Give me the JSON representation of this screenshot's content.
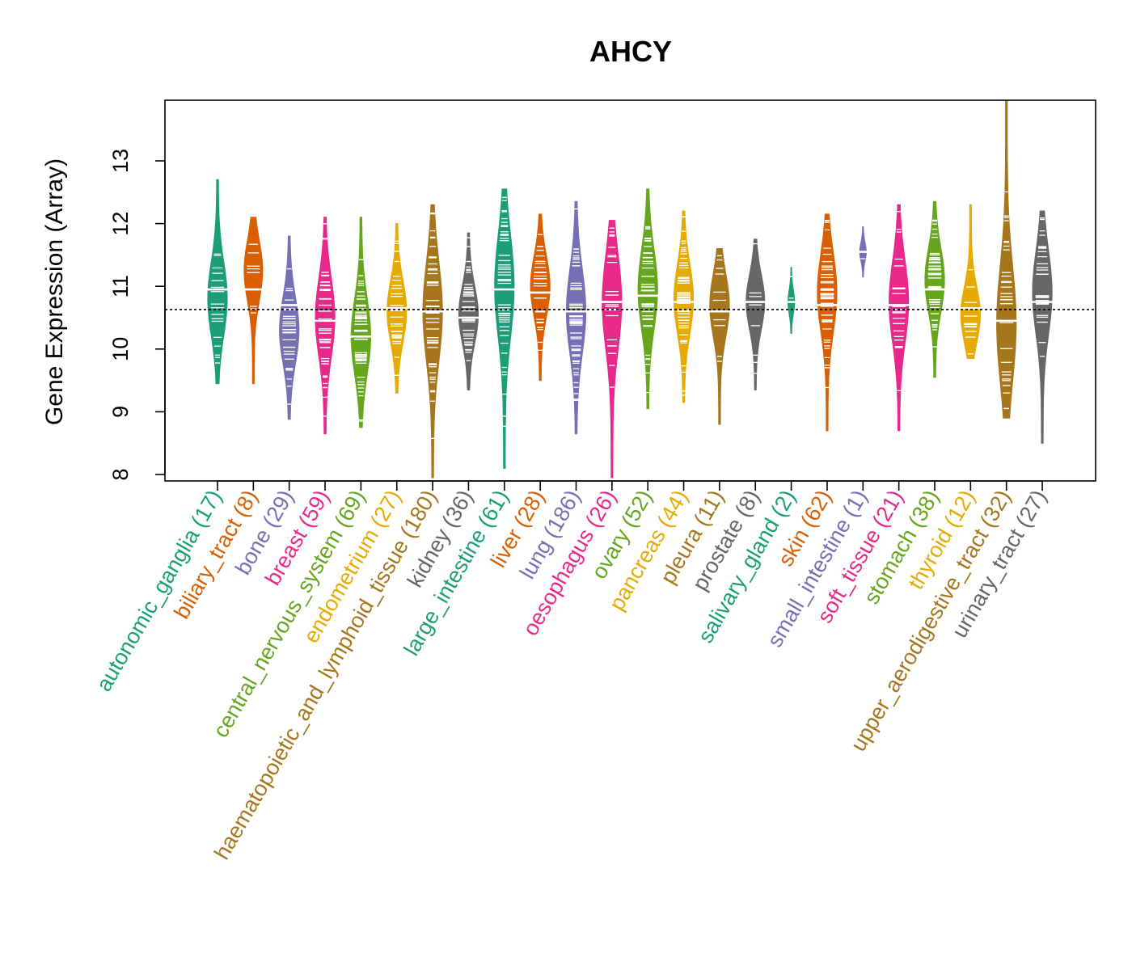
{
  "chart_data": {
    "type": "violin",
    "title": "AHCY",
    "xlabel": "",
    "ylabel": "Gene Expression (Array)",
    "ylim": [
      7.9,
      14.0
    ],
    "yticks": [
      "8",
      "9",
      "10",
      "11",
      "12",
      "13"
    ],
    "reference_line": 10.63,
    "series": [
      {
        "name": "autonomic_ganglia (17)",
        "color": "#1B9E77",
        "min": 9.45,
        "max": 12.7,
        "median": 10.95,
        "mode": 10.8
      },
      {
        "name": "biliary_tract (8)",
        "color": "#D95F02",
        "min": 9.45,
        "max": 12.1,
        "median": 10.95,
        "mode": 11.25
      },
      {
        "name": "bone (29)",
        "color": "#7570B3",
        "min": 8.88,
        "max": 11.8,
        "median": 10.7,
        "mode": 10.3
      },
      {
        "name": "breast (59)",
        "color": "#E7298A",
        "min": 8.65,
        "max": 12.1,
        "median": 10.45,
        "mode": 10.5
      },
      {
        "name": "central_nervous_system (69)",
        "color": "#66A61E",
        "min": 8.75,
        "max": 12.1,
        "median": 10.2,
        "mode": 10.2
      },
      {
        "name": "endometrium (27)",
        "color": "#E6AB02",
        "min": 9.3,
        "max": 12.0,
        "median": 10.65,
        "mode": 10.6
      },
      {
        "name": "haematopoietic_and_lymphoid_tissue (180)",
        "color": "#A6761D",
        "min": 7.95,
        "max": 12.3,
        "median": 10.6,
        "mode": 10.6
      },
      {
        "name": "kidney (36)",
        "color": "#666666",
        "min": 9.35,
        "max": 11.85,
        "median": 10.5,
        "mode": 10.55
      },
      {
        "name": "large_intestine (61)",
        "color": "#1B9E77",
        "min": 8.1,
        "max": 12.55,
        "median": 10.95,
        "mode": 11.0
      },
      {
        "name": "liver (28)",
        "color": "#D95F02",
        "min": 9.5,
        "max": 12.15,
        "median": 10.9,
        "mode": 11.0
      },
      {
        "name": "lung (186)",
        "color": "#7570B3",
        "min": 8.65,
        "max": 12.35,
        "median": 10.6,
        "mode": 10.6
      },
      {
        "name": "oesophagus (26)",
        "color": "#E7298A",
        "min": 7.95,
        "max": 12.05,
        "median": 10.75,
        "mode": 10.75
      },
      {
        "name": "ovary (52)",
        "color": "#66A61E",
        "min": 9.05,
        "max": 12.55,
        "median": 10.85,
        "mode": 10.95
      },
      {
        "name": "pancreas (44)",
        "color": "#E6AB02",
        "min": 9.15,
        "max": 12.2,
        "median": 10.75,
        "mode": 10.8
      },
      {
        "name": "pleura (11)",
        "color": "#A6761D",
        "min": 8.8,
        "max": 11.6,
        "median": 10.6,
        "mode": 10.7
      },
      {
        "name": "prostate (8)",
        "color": "#666666",
        "min": 9.35,
        "max": 11.75,
        "median": 10.75,
        "mode": 10.75
      },
      {
        "name": "salivary_gland (2)",
        "color": "#1B9E77",
        "min": 10.25,
        "max": 11.3,
        "median": 10.75,
        "mode": 10.75
      },
      {
        "name": "skin (62)",
        "color": "#D95F02",
        "min": 8.7,
        "max": 12.15,
        "median": 10.7,
        "mode": 10.9
      },
      {
        "name": "small_intestine (1)",
        "color": "#7570B3",
        "min": 11.15,
        "max": 11.95,
        "median": 11.55,
        "mode": 11.55
      },
      {
        "name": "soft_tissue (21)",
        "color": "#E7298A",
        "min": 8.7,
        "max": 12.3,
        "median": 10.7,
        "mode": 10.75
      },
      {
        "name": "stomach (38)",
        "color": "#66A61E",
        "min": 9.55,
        "max": 12.35,
        "median": 10.95,
        "mode": 11.1
      },
      {
        "name": "thyroid (12)",
        "color": "#E6AB02",
        "min": 9.85,
        "max": 12.3,
        "median": 10.65,
        "mode": 10.55
      },
      {
        "name": "upper_aerodigestive_tract (32)",
        "color": "#A6761D",
        "min": 8.9,
        "max": 13.95,
        "median": 10.45,
        "mode": 10.4
      },
      {
        "name": "urinary_tract (27)",
        "color": "#666666",
        "min": 8.5,
        "max": 12.2,
        "median": 10.75,
        "mode": 10.9
      }
    ]
  }
}
